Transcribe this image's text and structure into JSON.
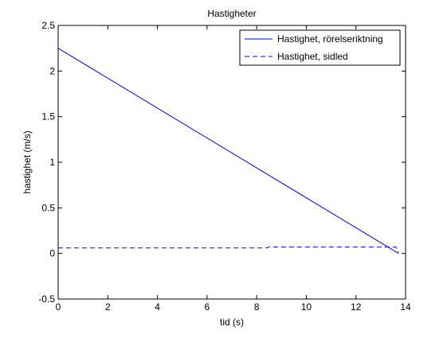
{
  "chart_data": {
    "type": "line",
    "title": "Hastigheter",
    "xlabel": "tid (s)",
    "ylabel": "hastighet (m/s)",
    "xlim": [
      0,
      14
    ],
    "ylim": [
      -0.5,
      2.5
    ],
    "xticks": [
      0,
      2,
      4,
      6,
      8,
      10,
      12,
      14
    ],
    "yticks": [
      -0.5,
      0,
      0.5,
      1,
      1.5,
      2,
      2.5
    ],
    "xtick_labels": [
      "0",
      "2",
      "4",
      "6",
      "8",
      "10",
      "12",
      "14"
    ],
    "ytick_labels": [
      "-0.5",
      "0",
      "0.5",
      "1",
      "1.5",
      "2",
      "2.5"
    ],
    "grid": false,
    "legend_position": "top-right",
    "series": [
      {
        "name": "Hastighet, rörelseriktning",
        "style": "solid",
        "color": "#0000ff",
        "x": [
          0,
          13.72
        ],
        "y": [
          2.25,
          0.0
        ]
      },
      {
        "name": "Hastighet, sidled",
        "style": "dashed",
        "color": "#0000ff",
        "x": [
          0,
          8.4,
          8.5,
          13.6,
          13.72
        ],
        "y": [
          0.06,
          0.06,
          0.07,
          0.07,
          0.01
        ]
      }
    ]
  }
}
